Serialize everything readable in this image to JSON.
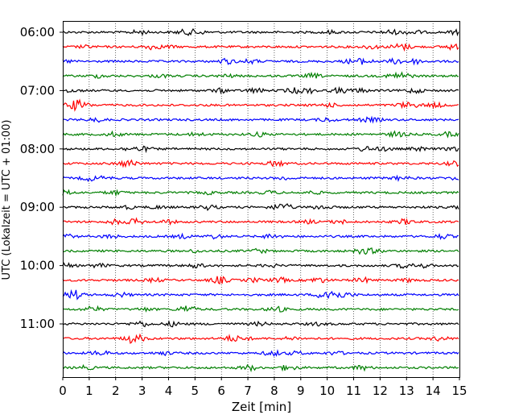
{
  "chart_data": {
    "type": "line",
    "title": "",
    "xlabel": "Zeit  [min]",
    "ylabel": "UTC (Lokalzeit = UTC + 01:00)",
    "xlim": [
      0,
      15
    ],
    "x_ticks": [
      "0",
      "1",
      "2",
      "3",
      "4",
      "5",
      "6",
      "7",
      "8",
      "9",
      "10",
      "11",
      "12",
      "13",
      "14",
      "15"
    ],
    "y_tick_labels": [
      "06:00",
      "07:00",
      "08:00",
      "09:00",
      "10:00",
      "11:00"
    ],
    "grid": "vertical dotted",
    "legend": "none",
    "trace_count": 24,
    "trace_interval_minutes": 15,
    "trace_colors": [
      "#000000",
      "#ff0000",
      "#0000ff",
      "#007f00"
    ]
  }
}
